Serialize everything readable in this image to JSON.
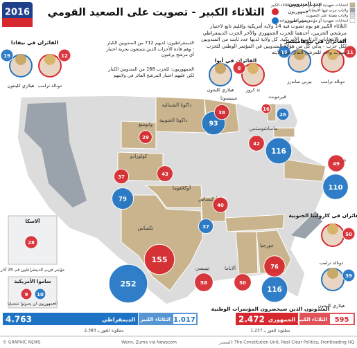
{
  "logo": "2016",
  "title": "الثلاثاء الكبير - تصويت على الصعيد القومي",
  "intro": "الثلاثاء الكبير هو يوم تصوت فيه 14 ولاية أمريكية وإقليم تابع لاختيار مرشحي الحزبين، أحدهما للحزب الجمهوري والآخر الحزب الديمقراطي في الانتخابات الرئاسية الأمريكية. كل ولاية لديها عدد ثابت من المندوبين لكل حزب - يدلي كل من هؤلاء المندوبين في المؤتمر الوطني للحزب بصوت واحد للمرشح الفائز في ولايته",
  "superdelegates": {
    "dem": "الديمقراطيون: لديهم 712 من المندوبين الكبار - وهم قادة الأحزاب الذين يتمتعون بحرية اختيار أي مرشح يرغبون",
    "rep": "الجمهوريون: للحزب 168 من المندوبين الكبار لكن عليهم اختيار المرشح الفائز في ولايتهم"
  },
  "legend": {
    "count": "عدد المندوبين",
    "rep": "جمهوريون",
    "dem": "ديمقراطيون",
    "items": [
      "انتخابات تمهيدية أو مؤتمر حزبي يوم الثلاثاء الكبير",
      "ولايات جرت فيها الانتخابات",
      "ولايات مقبلة على التصويت",
      "انتخابات تمهيدية أو مؤتمر حزبي لحزب واحد"
    ]
  },
  "colors": {
    "rep": "#d7282f",
    "dem": "#1f73c4",
    "super": "#c9b48d",
    "voted": "#9aa3ab",
    "future": "#dcdcdc"
  },
  "winners": [
    {
      "title": "الفائزان في نيفادا",
      "candidates": [
        {
          "name": "هيلاري كلينتون",
          "party": "dem",
          "delegates": 19
        },
        {
          "name": "دونالد ترامب",
          "party": "rep",
          "delegates": 12
        }
      ]
    },
    {
      "title": "الفائزان في أيوا",
      "candidates": [
        {
          "name": "هيلاري كلينتون",
          "party": "dem"
        },
        {
          "name": "تد كروز",
          "party": "rep",
          "delegates": 8
        }
      ]
    },
    {
      "title": "الفائزان في نيوهامبشير",
      "candidates": [
        {
          "name": "بيرني ساندرز",
          "party": "dem",
          "delegates": 15
        },
        {
          "name": "دونالد ترامب",
          "party": "rep",
          "delegates": 11
        }
      ]
    },
    {
      "title": "الفائزان في كارولينا الجنوبية",
      "candidates": [
        {
          "name": "دونالد ترامب",
          "party": "rep",
          "delegates": 50
        },
        {
          "name": "هيلاري كلينتون",
          "party": "dem",
          "delegates": 39
        }
      ]
    }
  ],
  "states": [
    {
      "name": "مينيسوتا",
      "rep": 38,
      "dem": 93
    },
    {
      "name": "فيرمونت",
      "rep": 16,
      "dem": 26
    },
    {
      "name": "ماساشوستس",
      "rep": 42,
      "dem": 116
    },
    {
      "name": "فيرجينيا",
      "rep": 49,
      "dem": 110
    },
    {
      "name": "وايومنغ",
      "rep": 29
    },
    {
      "name": "كولورادو",
      "rep": 37,
      "dem": 79
    },
    {
      "name": "أوكلاهوما",
      "rep": 43
    },
    {
      "name": "أركنساس",
      "rep": 40,
      "dem": 37
    },
    {
      "name": "تكساس",
      "rep": 155,
      "dem": 252
    },
    {
      "name": "تينيسي",
      "rep": 58
    },
    {
      "name": "ألاباما",
      "rep": 50
    },
    {
      "name": "جورجيا",
      "rep": 76,
      "dem": 116
    },
    {
      "name": "داكوتا الشمالية"
    },
    {
      "name": "داكوتا الجنوبية"
    }
  ],
  "alaska": {
    "name": "ألاسكا",
    "rep": 28,
    "note": "مؤتمر حزبي للديمقراطيين في 26 آذار"
  },
  "samoa": {
    "name": "ساموا الأمريكية",
    "rep": 9,
    "dem": 10,
    "note": "الجمهوريون لن يصوتوا تفضيليا"
  },
  "totals": {
    "title": "المندوبون الذين سيحضرون المؤتمرات الوطنية",
    "dem": {
      "party": "الديمقراطي",
      "total": "4.763",
      "needed": "مطلوبة للفوز بـ 2,383",
      "st_label": "الثلاثاء الكبير",
      "st": "1.017"
    },
    "rep": {
      "party": "الجمهوري",
      "total": "2.472",
      "needed": "مطلوبة للفوز بـ 1,237",
      "st_label": "الثلاثاء الكبير",
      "st": "595"
    }
  },
  "footer": {
    "copyright": "© GRAPHIC NEWS",
    "photos": "Wenn, Zuma via Newscom",
    "source": "المصدر: The Constitution Unit, Real Clear Politics, Frontloading HQ"
  }
}
